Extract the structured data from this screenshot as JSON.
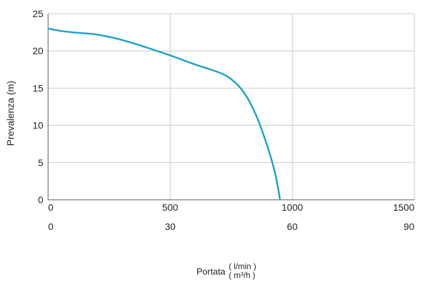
{
  "chart_data": {
    "type": "line",
    "ylabel": "Prevalenza (m)",
    "xlabel": "Portata",
    "x_units_primary": "( l/min )",
    "x_units_secondary": "( m³/h )",
    "xlim": [
      0,
      1500
    ],
    "ylim": [
      0,
      25
    ],
    "x_ticks": [
      0,
      500,
      1000,
      1500
    ],
    "x_ticks_secondary": [
      0,
      30,
      60,
      90
    ],
    "y_ticks": [
      0,
      5,
      10,
      15,
      20,
      25
    ],
    "grid": true,
    "series": [
      {
        "color": "#1aa3c8",
        "x": [
          0,
          50,
          100,
          200,
          300,
          400,
          500,
          600,
          700,
          750,
          800,
          850,
          900,
          930,
          950
        ],
        "y": [
          23.0,
          22.7,
          22.5,
          22.2,
          21.5,
          20.5,
          19.4,
          18.2,
          17.1,
          16.2,
          14.5,
          11.5,
          7.0,
          3.5,
          0
        ]
      }
    ]
  }
}
